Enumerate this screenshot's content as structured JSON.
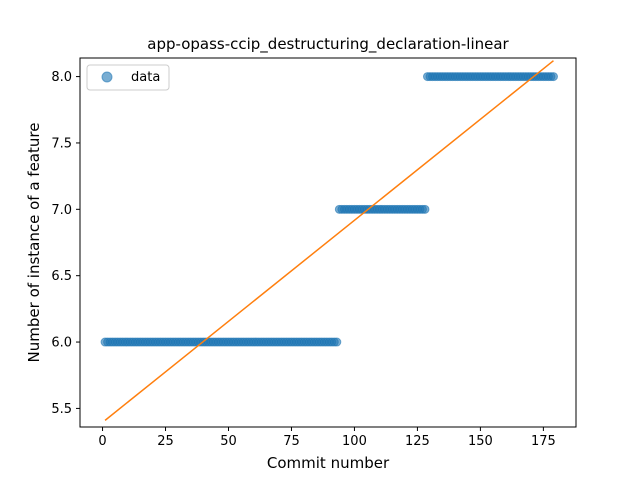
{
  "chart_data": {
    "type": "scatter",
    "title": "app-opass-ccip_destructuring_declaration-linear",
    "xlabel": "Commit number",
    "ylabel": "Number of instance of a feature",
    "xlim": [
      -8.95,
      187.95
    ],
    "ylim": [
      5.36,
      8.14
    ],
    "xticks": [
      0,
      25,
      50,
      75,
      100,
      125,
      150,
      175
    ],
    "yticks": [
      5.5,
      6.0,
      6.5,
      7.0,
      7.5,
      8.0
    ],
    "ytick_labels": [
      "5.5",
      "6.0",
      "6.5",
      "7.0",
      "7.5",
      "8.0"
    ],
    "grid": false,
    "legend": {
      "position": "upper left",
      "entries": [
        "data"
      ]
    },
    "series": [
      {
        "name": "data",
        "kind": "scatter",
        "color": "#1f77b4",
        "segments": [
          {
            "x_start": 1,
            "x_end": 93,
            "y": 6
          },
          {
            "x_start": 94,
            "x_end": 128,
            "y": 7
          },
          {
            "x_start": 129,
            "x_end": 179,
            "y": 8
          }
        ]
      },
      {
        "kind": "line",
        "color": "#ff7f0e",
        "x": [
          1,
          179
        ],
        "y": [
          5.41,
          8.12
        ]
      }
    ]
  }
}
